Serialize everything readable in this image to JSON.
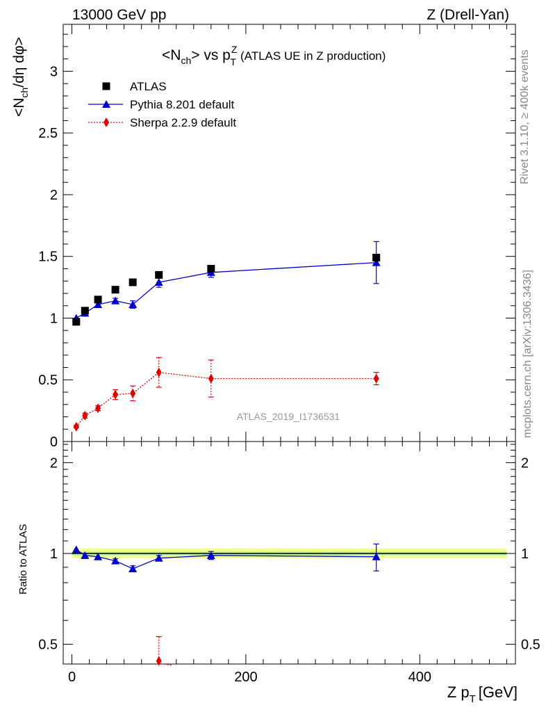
{
  "header": {
    "left": "13000 GeV pp",
    "right": "Z (Drell-Yan)"
  },
  "side_labels": {
    "rivet": "Rivet 3.1.10, ≥ 400k events",
    "mcplots": "mcplots.cern.ch [arXiv:1306.3436]"
  },
  "watermark": "ATLAS_2019_I1736531",
  "title": {
    "open": "<N",
    "sub1": "ch",
    "mid": "> vs p",
    "sup": "Z",
    "sub2": "T",
    "tail": "(ATLAS UE in Z production)"
  },
  "y_label": {
    "open": "<N",
    "sub": "ch",
    "rest": "/dη dφ>"
  },
  "ratio_label": "Ratio to ATLAS",
  "x_label": {
    "main": "Z p",
    "sub": "T",
    "unit": "[GeV]"
  },
  "colors": {
    "atlas": "#000000",
    "pythia": "#0000cc",
    "sherpa": "#e00000",
    "band_outer": "#f2ff8c",
    "band_inner": "#b8f29a"
  },
  "chart_data": [
    {
      "type": "scatter",
      "panel": "main",
      "x_tick_labels": [],
      "y_tick_labels": [
        "0",
        "0.5",
        "1",
        "1.5",
        "2",
        "2.5",
        "3"
      ],
      "xlim": [
        -10,
        510
      ],
      "ylim": [
        0,
        3.38
      ],
      "series": [
        {
          "name": "ATLAS",
          "marker": "square",
          "x": [
            5,
            15,
            30,
            50,
            70,
            100,
            160,
            350
          ],
          "y": [
            0.97,
            1.06,
            1.15,
            1.23,
            1.29,
            1.35,
            1.4,
            1.49
          ]
        },
        {
          "name": "Pythia 8.201 default",
          "marker": "triangle",
          "line": "solid",
          "x": [
            5,
            15,
            30,
            50,
            70,
            100,
            160,
            350
          ],
          "y": [
            1.0,
            1.04,
            1.11,
            1.14,
            1.11,
            1.29,
            1.37,
            1.45
          ],
          "err": [
            0.01,
            0.01,
            0.02,
            0.02,
            0.03,
            0.04,
            0.04,
            0.17
          ]
        },
        {
          "name": "Sherpa 2.2.9 default",
          "marker": "diamond",
          "line": "dotted",
          "x": [
            5,
            15,
            30,
            50,
            70,
            100,
            160,
            350
          ],
          "y": [
            0.12,
            0.21,
            0.27,
            0.38,
            0.39,
            0.56,
            0.51,
            0.51
          ],
          "err": [
            0.01,
            0.02,
            0.02,
            0.04,
            0.06,
            0.12,
            0.15,
            0.05
          ]
        }
      ]
    },
    {
      "type": "line",
      "panel": "ratio",
      "x_tick_labels": [
        "0",
        "200",
        "400"
      ],
      "y_tick_labels": [
        "0.5",
        "1",
        "2"
      ],
      "y_scale": "log",
      "xlim": [
        -10,
        510
      ],
      "ylim": [
        0.43,
        2.35
      ],
      "band": {
        "inner": [
          0.985,
          1.015
        ],
        "outer": [
          0.965,
          1.04
        ]
      },
      "series": [
        {
          "name": "Pythia 8.201 default",
          "x": [
            5,
            15,
            30,
            50,
            70,
            100,
            160,
            350
          ],
          "y": [
            1.03,
            0.985,
            0.975,
            0.945,
            0.89,
            0.965,
            0.985,
            0.975
          ],
          "err": [
            0.01,
            0.01,
            0.01,
            0.015,
            0.02,
            0.02,
            0.03,
            0.1
          ]
        },
        {
          "name": "Sherpa 2.2.9 default",
          "x": [
            100
          ],
          "y": [
            0.44
          ],
          "err_up": [
            0.09
          ]
        }
      ]
    }
  ]
}
